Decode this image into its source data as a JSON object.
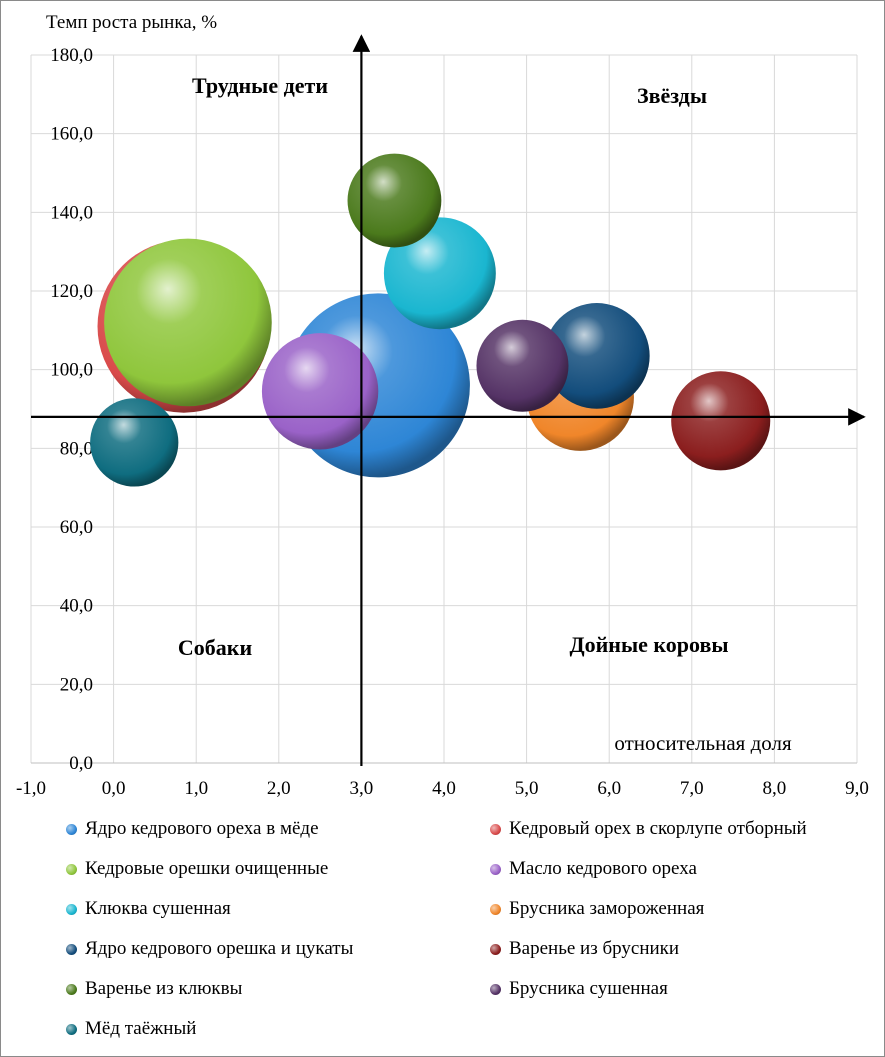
{
  "chart_data": {
    "type": "bubble",
    "ylabel": "Темп роста рынка, %",
    "xlabel": "относительная доля",
    "xlim": [
      -1.0,
      9.0
    ],
    "ylim": [
      0.0,
      180.0
    ],
    "x_ticks": [
      "-1,0",
      "0,0",
      "1,0",
      "2,0",
      "3,0",
      "4,0",
      "5,0",
      "6,0",
      "7,0",
      "8,0",
      "9,0"
    ],
    "y_ticks": [
      "0,0",
      "20,0",
      "40,0",
      "60,0",
      "80,0",
      "100,0",
      "120,0",
      "140,0",
      "160,0",
      "180,0"
    ],
    "grid": true,
    "quadrant_axes": {
      "x": 3.0,
      "y": 88.0
    },
    "quadrant_labels": {
      "top_left": "Трудные дети",
      "top_right": "Звёзды",
      "bottom_left": "Собаки",
      "bottom_right": "Дойные коровы"
    },
    "series": [
      {
        "name": "Ядро кедрового ореха в мёде",
        "x": 3.2,
        "y": 96.0,
        "size": 100,
        "color": "#2e86d6"
      },
      {
        "name": "Кедровый орех в скорлупе отборный",
        "x": 0.85,
        "y": 111.0,
        "size": 88,
        "color": "#d94a4a"
      },
      {
        "name": "Кедровые орешки очищенные",
        "x": 0.9,
        "y": 112.0,
        "size": 83,
        "color": "#8fc63c"
      },
      {
        "name": "Масло кедрового ореха",
        "x": 2.5,
        "y": 94.5,
        "size": 40,
        "color": "#9a62c8"
      },
      {
        "name": "Клюква сушенная",
        "x": 3.95,
        "y": 124.5,
        "size": 37,
        "color": "#1ab6d0"
      },
      {
        "name": "Брусника замороженная",
        "x": 5.65,
        "y": 93.0,
        "size": 34,
        "color": "#f0862a"
      },
      {
        "name": "Ядро кедрового орешка и цукаты",
        "x": 5.85,
        "y": 103.5,
        "size": 33,
        "color": "#134d7c"
      },
      {
        "name": "Варенье из брусники",
        "x": 7.35,
        "y": 87.0,
        "size": 29,
        "color": "#8b1e1e"
      },
      {
        "name": "Варенье из клюквы",
        "x": 3.4,
        "y": 143.0,
        "size": 26,
        "color": "#4b7a1c"
      },
      {
        "name": "Брусника сушенная",
        "x": 4.95,
        "y": 101.0,
        "size": 25,
        "color": "#553366"
      },
      {
        "name": "Мёд таёжный",
        "x": 0.25,
        "y": 81.5,
        "size": 23,
        "color": "#0f6d80"
      }
    ]
  }
}
